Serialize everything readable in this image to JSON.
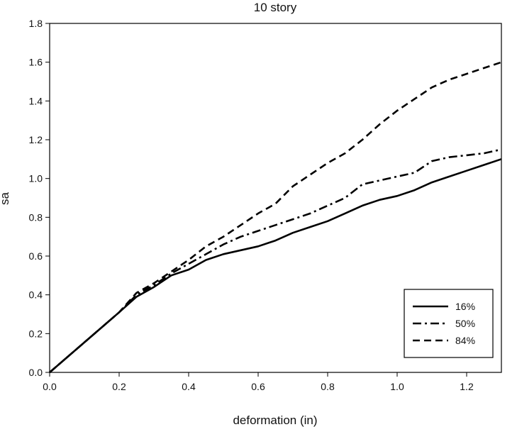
{
  "chart_data": {
    "type": "line",
    "title": "10 story",
    "xlabel": "deformation (in)",
    "ylabel": "sa",
    "xlim": [
      0,
      1.3
    ],
    "ylim": [
      0,
      1.8
    ],
    "x_ticks": [
      "0.0",
      "0.2",
      "0.4",
      "0.6",
      "0.8",
      "1.0",
      "1.2"
    ],
    "y_ticks": [
      "0.0",
      "0.2",
      "0.4",
      "0.6",
      "0.8",
      "1.0",
      "1.2",
      "1.4",
      "1.6",
      "1.8"
    ],
    "grid": false,
    "legend_position": "bottom-right",
    "series": [
      {
        "name": "16%",
        "style": "solid",
        "points": [
          [
            0,
            0
          ],
          [
            0.2,
            0.31
          ],
          [
            0.25,
            0.39
          ],
          [
            0.3,
            0.44
          ],
          [
            0.35,
            0.5
          ],
          [
            0.4,
            0.53
          ],
          [
            0.45,
            0.58
          ],
          [
            0.5,
            0.61
          ],
          [
            0.55,
            0.63
          ],
          [
            0.6,
            0.65
          ],
          [
            0.65,
            0.68
          ],
          [
            0.7,
            0.72
          ],
          [
            0.75,
            0.75
          ],
          [
            0.8,
            0.78
          ],
          [
            0.85,
            0.82
          ],
          [
            0.9,
            0.86
          ],
          [
            0.95,
            0.89
          ],
          [
            1.0,
            0.91
          ],
          [
            1.05,
            0.94
          ],
          [
            1.1,
            0.98
          ],
          [
            1.15,
            1.01
          ],
          [
            1.2,
            1.04
          ],
          [
            1.25,
            1.07
          ],
          [
            1.3,
            1.1
          ]
        ]
      },
      {
        "name": "50%",
        "style": "dashdot",
        "points": [
          [
            0,
            0
          ],
          [
            0.2,
            0.31
          ],
          [
            0.25,
            0.4
          ],
          [
            0.3,
            0.45
          ],
          [
            0.35,
            0.51
          ],
          [
            0.4,
            0.56
          ],
          [
            0.45,
            0.61
          ],
          [
            0.5,
            0.66
          ],
          [
            0.55,
            0.7
          ],
          [
            0.6,
            0.73
          ],
          [
            0.65,
            0.76
          ],
          [
            0.7,
            0.79
          ],
          [
            0.75,
            0.82
          ],
          [
            0.8,
            0.86
          ],
          [
            0.85,
            0.9
          ],
          [
            0.9,
            0.97
          ],
          [
            0.95,
            0.99
          ],
          [
            1.0,
            1.01
          ],
          [
            1.05,
            1.03
          ],
          [
            1.1,
            1.09
          ],
          [
            1.15,
            1.11
          ],
          [
            1.2,
            1.12
          ],
          [
            1.25,
            1.13
          ],
          [
            1.3,
            1.15
          ]
        ]
      },
      {
        "name": "84%",
        "style": "dashed",
        "points": [
          [
            0,
            0
          ],
          [
            0.2,
            0.31
          ],
          [
            0.25,
            0.41
          ],
          [
            0.3,
            0.46
          ],
          [
            0.35,
            0.52
          ],
          [
            0.4,
            0.58
          ],
          [
            0.45,
            0.65
          ],
          [
            0.5,
            0.7
          ],
          [
            0.55,
            0.76
          ],
          [
            0.6,
            0.82
          ],
          [
            0.65,
            0.87
          ],
          [
            0.7,
            0.96
          ],
          [
            0.75,
            1.02
          ],
          [
            0.8,
            1.08
          ],
          [
            0.85,
            1.13
          ],
          [
            0.9,
            1.2
          ],
          [
            0.95,
            1.28
          ],
          [
            1.0,
            1.35
          ],
          [
            1.05,
            1.41
          ],
          [
            1.1,
            1.47
          ],
          [
            1.15,
            1.51
          ],
          [
            1.2,
            1.54
          ],
          [
            1.25,
            1.57
          ],
          [
            1.3,
            1.6
          ]
        ]
      }
    ]
  }
}
